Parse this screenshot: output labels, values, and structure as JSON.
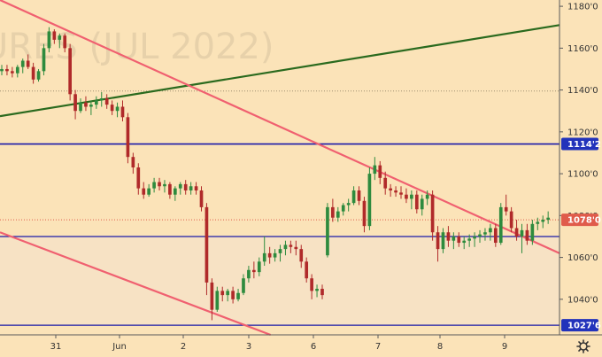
{
  "watermark": "URES (JUL 2022)",
  "chart_data": {
    "type": "candlestick",
    "title": "",
    "xlabel": "",
    "ylabel": "",
    "ylim": [
      1023,
      1183
    ],
    "y_ticks": [
      {
        "value": 1040,
        "label": "1040'0"
      },
      {
        "value": 1060,
        "label": "1060'0"
      },
      {
        "value": 1080,
        "label": "1080'0"
      },
      {
        "value": 1100,
        "label": "1100'0"
      },
      {
        "value": 1120,
        "label": "1120'0"
      },
      {
        "value": 1140,
        "label": "1140'0"
      },
      {
        "value": 1160,
        "label": "1160'0"
      },
      {
        "value": 1180,
        "label": "1180'0"
      }
    ],
    "x_ticks": [
      "31",
      "Jun",
      "2",
      "3",
      "6",
      "7",
      "8",
      "9"
    ],
    "price_tags": [
      {
        "value": 1114.2,
        "label": "1114'2",
        "color": "#2233bb"
      },
      {
        "value": 1078.0,
        "label": "1078'0",
        "color": "#e05b4b"
      },
      {
        "value": 1027.6,
        "label": "1027'6",
        "color": "#2233bb"
      }
    ],
    "horizontal_lines": [
      {
        "value": 1114.2,
        "color": "#1a1aaa"
      },
      {
        "value": 1070.0,
        "color": "#1a1aaa"
      },
      {
        "value": 1027.6,
        "color": "#1a1aaa"
      }
    ],
    "dotted_lines": [
      {
        "value": 1139.5,
        "color": "#a09070"
      },
      {
        "value": 1078.0,
        "color": "#e05b4b"
      }
    ],
    "trend_lines": [
      {
        "name": "",
        "color": "#2a6a1e",
        "from": [
          0,
          1127.5
        ],
        "to": [
          106.5,
          1171
        ]
      },
      {
        "name": "",
        "color": "#f06070",
        "from": [
          0,
          1183
        ],
        "to": [
          106.5,
          1062
        ]
      },
      {
        "name": "",
        "color": "#f06070",
        "from": [
          0,
          1072
        ],
        "to": [
          51.5,
          1023
        ]
      }
    ],
    "candles_x_max": 106.5,
    "up_color": "#2e8b3e",
    "down_color": "#b02a2a",
    "candles": [
      [
        1149,
        1152,
        1147,
        1150
      ],
      [
        1150,
        1152,
        1147,
        1149
      ],
      [
        1149,
        1151,
        1146,
        1148
      ],
      [
        1148,
        1152,
        1146,
        1151
      ],
      [
        1151,
        1155,
        1148,
        1154
      ],
      [
        1154,
        1157,
        1150,
        1151
      ],
      [
        1151,
        1153,
        1143,
        1145
      ],
      [
        1145,
        1150,
        1144,
        1149
      ],
      [
        1149,
        1162,
        1147,
        1160
      ],
      [
        1160,
        1170,
        1158,
        1168
      ],
      [
        1168,
        1169,
        1162,
        1164
      ],
      [
        1164,
        1167,
        1160,
        1166
      ],
      [
        1166,
        1167,
        1158,
        1160
      ],
      [
        1160,
        1162,
        1135,
        1138
      ],
      [
        1138,
        1140,
        1126,
        1130
      ],
      [
        1130,
        1136,
        1129,
        1134
      ],
      [
        1134,
        1137,
        1130,
        1132
      ],
      [
        1132,
        1135,
        1128,
        1133
      ],
      [
        1133,
        1137,
        1131,
        1135
      ],
      [
        1135,
        1139,
        1132,
        1136
      ],
      [
        1136,
        1138,
        1131,
        1133
      ],
      [
        1133,
        1135,
        1128,
        1130
      ],
      [
        1130,
        1134,
        1127,
        1132
      ],
      [
        1132,
        1135,
        1125,
        1127
      ],
      [
        1127,
        1129,
        1105,
        1108
      ],
      [
        1108,
        1110,
        1100,
        1103
      ],
      [
        1103,
        1105,
        1090,
        1093
      ],
      [
        1093,
        1096,
        1088,
        1090
      ],
      [
        1090,
        1095,
        1089,
        1093
      ],
      [
        1093,
        1098,
        1091,
        1096
      ],
      [
        1096,
        1098,
        1092,
        1094
      ],
      [
        1094,
        1097,
        1091,
        1095
      ],
      [
        1095,
        1096,
        1088,
        1090
      ],
      [
        1090,
        1094,
        1087,
        1093
      ],
      [
        1093,
        1096,
        1090,
        1095
      ],
      [
        1095,
        1097,
        1090,
        1092
      ],
      [
        1092,
        1096,
        1090,
        1094
      ],
      [
        1094,
        1096,
        1090,
        1092
      ],
      [
        1092,
        1094,
        1082,
        1084
      ],
      [
        1084,
        1086,
        1042,
        1048
      ],
      [
        1048,
        1050,
        1030,
        1035
      ],
      [
        1035,
        1046,
        1034,
        1044
      ],
      [
        1044,
        1046,
        1039,
        1042
      ],
      [
        1042,
        1045,
        1039,
        1044
      ],
      [
        1044,
        1046,
        1038,
        1040
      ],
      [
        1040,
        1045,
        1039,
        1043
      ],
      [
        1043,
        1052,
        1042,
        1050
      ],
      [
        1050,
        1056,
        1048,
        1054
      ],
      [
        1054,
        1058,
        1050,
        1053
      ],
      [
        1053,
        1060,
        1051,
        1058
      ],
      [
        1058,
        1070,
        1056,
        1062
      ],
      [
        1062,
        1065,
        1057,
        1060
      ],
      [
        1060,
        1064,
        1058,
        1062
      ],
      [
        1062,
        1066,
        1058,
        1064
      ],
      [
        1064,
        1068,
        1061,
        1066
      ],
      [
        1066,
        1068,
        1062,
        1065
      ],
      [
        1065,
        1068,
        1061,
        1064
      ],
      [
        1064,
        1066,
        1055,
        1058
      ],
      [
        1058,
        1060,
        1048,
        1050
      ],
      [
        1050,
        1052,
        1040,
        1044
      ],
      [
        1044,
        1047,
        1041,
        1045
      ],
      [
        1045,
        1047,
        1040,
        1042
      ],
      [
        1061,
        1086,
        1060,
        1084
      ],
      [
        1084,
        1088,
        1077,
        1079
      ],
      [
        1079,
        1084,
        1077,
        1082
      ],
      [
        1082,
        1086,
        1080,
        1085
      ],
      [
        1085,
        1088,
        1082,
        1086
      ],
      [
        1086,
        1094,
        1085,
        1092
      ],
      [
        1092,
        1094,
        1085,
        1087
      ],
      [
        1087,
        1089,
        1072,
        1075
      ],
      [
        1075,
        1103,
        1073,
        1100
      ],
      [
        1100,
        1108,
        1097,
        1104
      ],
      [
        1104,
        1106,
        1095,
        1098
      ],
      [
        1098,
        1101,
        1090,
        1093
      ],
      [
        1093,
        1095,
        1089,
        1092
      ],
      [
        1092,
        1094,
        1089,
        1091
      ],
      [
        1091,
        1094,
        1088,
        1090
      ],
      [
        1090,
        1093,
        1086,
        1088
      ],
      [
        1088,
        1092,
        1083,
        1090
      ],
      [
        1090,
        1092,
        1081,
        1083
      ],
      [
        1083,
        1090,
        1080,
        1088
      ],
      [
        1088,
        1092,
        1085,
        1090
      ],
      [
        1090,
        1092,
        1068,
        1072
      ],
      [
        1072,
        1075,
        1058,
        1064
      ],
      [
        1064,
        1074,
        1062,
        1072
      ],
      [
        1072,
        1075,
        1065,
        1068
      ],
      [
        1068,
        1072,
        1064,
        1070
      ],
      [
        1070,
        1072,
        1065,
        1067
      ],
      [
        1067,
        1070,
        1064,
        1068
      ],
      [
        1068,
        1071,
        1065,
        1069
      ],
      [
        1069,
        1072,
        1065,
        1070
      ],
      [
        1070,
        1073,
        1067,
        1071
      ],
      [
        1071,
        1074,
        1068,
        1072
      ],
      [
        1072,
        1076,
        1068,
        1074
      ],
      [
        1074,
        1076,
        1065,
        1067
      ],
      [
        1067,
        1086,
        1066,
        1084
      ],
      [
        1084,
        1090,
        1080,
        1082
      ],
      [
        1082,
        1084,
        1072,
        1074
      ],
      [
        1074,
        1078,
        1068,
        1070
      ],
      [
        1070,
        1076,
        1062,
        1073
      ],
      [
        1073,
        1076,
        1066,
        1068
      ],
      [
        1068,
        1078,
        1066,
        1076
      ],
      [
        1076,
        1079,
        1073,
        1077
      ],
      [
        1077,
        1080,
        1074,
        1078
      ],
      [
        1078,
        1082,
        1076,
        1079
      ]
    ]
  }
}
